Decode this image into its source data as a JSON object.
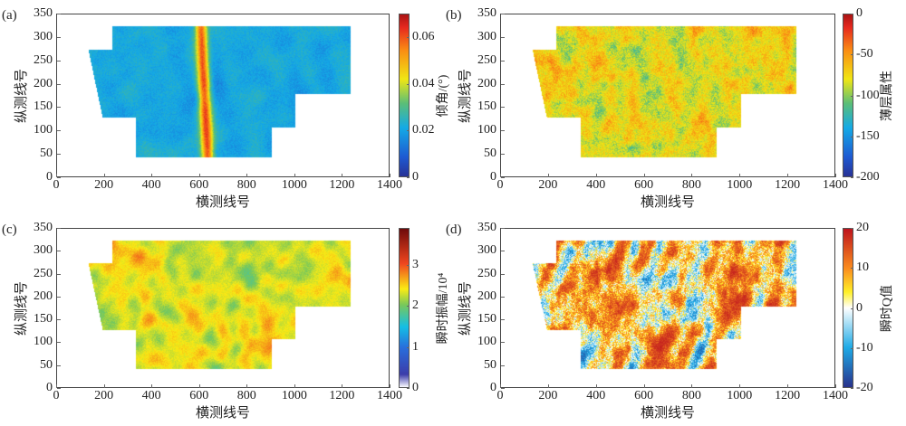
{
  "chart_data": [
    {
      "type": "heatmap",
      "panel_label": "(a)",
      "xlabel": "横测线号",
      "ylabel": "纵测线号",
      "xlim": [
        0,
        1400
      ],
      "ylim": [
        0,
        350
      ],
      "xticks": [
        0,
        200,
        400,
        600,
        800,
        1000,
        1200,
        1400
      ],
      "yticks": [
        0,
        50,
        100,
        150,
        200,
        250,
        300,
        350
      ],
      "colorbar": {
        "label": "倾角/(°)",
        "range": [
          0,
          0.07
        ],
        "ticks": [
          "0",
          "0.02",
          "0.04",
          "0.06"
        ],
        "tick_values": [
          0,
          0.02,
          0.04,
          0.06
        ],
        "colormap": "jet"
      }
    },
    {
      "type": "heatmap",
      "panel_label": "(b)",
      "xlabel": "横测线号",
      "ylabel": "纵测线号",
      "xlim": [
        0,
        1400
      ],
      "ylim": [
        0,
        350
      ],
      "xticks": [
        0,
        200,
        400,
        600,
        800,
        1000,
        1200,
        1400
      ],
      "yticks": [
        0,
        50,
        100,
        150,
        200,
        250,
        300,
        350
      ],
      "colorbar": {
        "label": "薄层属性",
        "range": [
          -200,
          0
        ],
        "ticks": [
          "-200",
          "-150",
          "-100",
          "-50",
          "0"
        ],
        "tick_values": [
          -200,
          -150,
          -100,
          -50,
          0
        ],
        "colormap": "jet"
      }
    },
    {
      "type": "heatmap",
      "panel_label": "(c)",
      "xlabel": "横测线号",
      "ylabel": "纵测线号",
      "xlim": [
        0,
        1400
      ],
      "ylim": [
        0,
        350
      ],
      "xticks": [
        0,
        200,
        400,
        600,
        800,
        1000,
        1200,
        1400
      ],
      "yticks": [
        0,
        50,
        100,
        150,
        200,
        250,
        300,
        350
      ],
      "colorbar": {
        "label": "瞬时振幅/10⁴",
        "range": [
          0,
          3.9
        ],
        "ticks": [
          "0",
          "1",
          "2",
          "3"
        ],
        "tick_values": [
          0,
          1,
          2,
          3
        ],
        "colormap": "jet-white"
      }
    },
    {
      "type": "heatmap",
      "panel_label": "(d)",
      "xlabel": "横测线号",
      "ylabel": "纵测线号",
      "xlim": [
        0,
        1400
      ],
      "ylim": [
        0,
        350
      ],
      "xticks": [
        0,
        200,
        400,
        600,
        800,
        1000,
        1200,
        1400
      ],
      "yticks": [
        0,
        50,
        100,
        150,
        200,
        250,
        300,
        350
      ],
      "colorbar": {
        "label": "瞬时Q值",
        "range": [
          -20,
          20
        ],
        "ticks": [
          "-20",
          "-10",
          "0",
          "10",
          "20"
        ],
        "tick_values": [
          -20,
          -10,
          0,
          10,
          20
        ],
        "colormap": "diverging"
      }
    }
  ]
}
